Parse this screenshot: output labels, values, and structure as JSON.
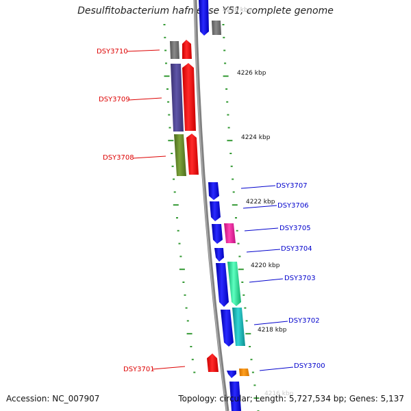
{
  "title": "Desulfitobacterium hafniense Y51, complete genome",
  "footer": {
    "accession": "Accession: NC_007907",
    "topology": "Topology: circular; Length: 5,727,534 bp; Genes: 5,137"
  },
  "ruler": {
    "ticks": [
      {
        "label": "4228 kbp",
        "faded": true
      },
      {
        "label": "4226 kbp"
      },
      {
        "label": "4224 kbp"
      },
      {
        "label": "4222 kbp"
      },
      {
        "label": "4220 kbp"
      },
      {
        "label": "4218 kbp"
      },
      {
        "label": "4216 kbp",
        "faded": true
      }
    ]
  },
  "labels": {
    "reverse": [
      "DSY3710",
      "DSY3709",
      "DSY3708",
      "DSY3701"
    ],
    "forward": [
      "DSY3707",
      "DSY3706",
      "DSY3705",
      "DSY3704",
      "DSY3703",
      "DSY3702",
      "DSY3700"
    ]
  },
  "colors": {
    "reverse_label": "#dd0000",
    "forward_label": "#0000cc",
    "backbone": "#808080",
    "tick": "#339933"
  }
}
